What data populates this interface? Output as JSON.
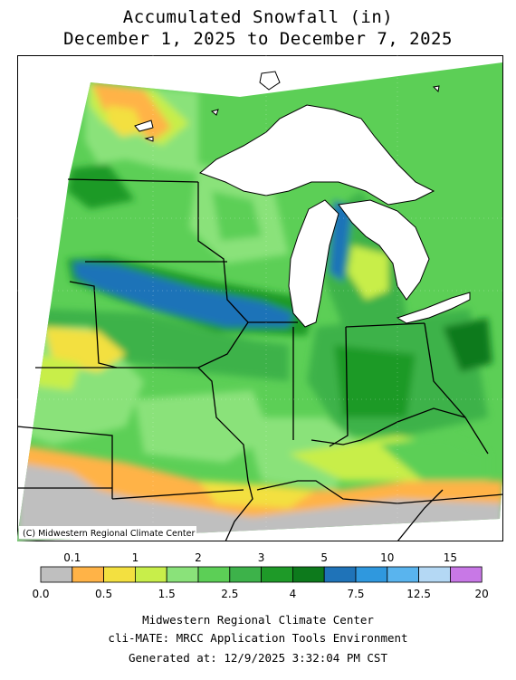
{
  "title": {
    "line1": "Accumulated Snowfall (in)",
    "line2": "December 1, 2025 to December 7, 2025"
  },
  "map": {
    "copyright": "(C) Midwestern Regional Climate Center",
    "colors": {
      "water": "#ffffff",
      "c0": "#bfbfbf",
      "c01": "#ffb347",
      "c1": "#f3e040",
      "c2": "#c8ee4a",
      "c3": "#8ae27a",
      "c4": "#5ccf56",
      "c5": "#3db24a",
      "c6": "#1e9a28",
      "c7": "#0d7a1c",
      "c8": "#1f73b8",
      "c9": "#2f98de",
      "c10": "#59b4ee"
    }
  },
  "legend": {
    "top_labels": [
      "0.1",
      "1",
      "2",
      "3",
      "5",
      "10",
      "15"
    ],
    "bottom_labels": [
      "0.0",
      "0.5",
      "1.5",
      "2.5",
      "4",
      "7.5",
      "12.5",
      "20"
    ],
    "colors": [
      "#bfbfbf",
      "#ffb347",
      "#f3e040",
      "#c8ee4a",
      "#8ae27a",
      "#5ccf56",
      "#3db24a",
      "#1e9a28",
      "#0d7a1c",
      "#1f73b8",
      "#2f98de",
      "#59b4ee",
      "#b4d8f4",
      "#c878e6"
    ]
  },
  "footer": {
    "line1": "Midwestern Regional Climate Center",
    "line2": "cli-MATE: MRCC Application Tools Environment",
    "line3": "Generated at: 12/9/2025 3:32:04 PM CST"
  }
}
